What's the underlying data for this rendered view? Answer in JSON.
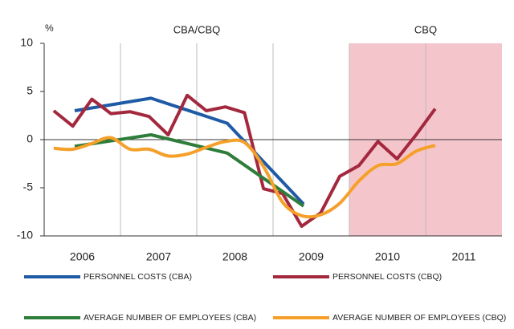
{
  "chart_data": {
    "type": "line",
    "y_unit": "%",
    "periods": [
      {
        "label": "CBA/CBQ",
        "start": 2006,
        "end": 2010,
        "shaded": false
      },
      {
        "label": "CBQ",
        "start": 2010,
        "end": 2012,
        "shaded": true
      }
    ],
    "xlim": [
      2006,
      2012
    ],
    "xticks": [
      {
        "value": 2006.5,
        "label": "2006"
      },
      {
        "value": 2007.5,
        "label": "2007"
      },
      {
        "value": 2008.5,
        "label": "2008"
      },
      {
        "value": 2009.5,
        "label": "2009"
      },
      {
        "value": 2010.5,
        "label": "2010"
      },
      {
        "value": 2011.5,
        "label": "2011"
      }
    ],
    "ylim": [
      -10,
      10
    ],
    "yticks": [
      10,
      5,
      0,
      -5,
      -10
    ],
    "series": [
      {
        "name": "PERSONNEL COSTS (CBA)",
        "color": "#1f5aa6",
        "smooth": false,
        "x": [
          2006.4,
          2007.4,
          2008.4,
          2009.4
        ],
        "values": [
          3.0,
          4.3,
          1.7,
          -6.7
        ]
      },
      {
        "name": "PERSONNEL COSTS (CBQ)",
        "color": "#a3283e",
        "smooth": false,
        "x": [
          2006.125,
          2006.375,
          2006.625,
          2006.875,
          2007.125,
          2007.375,
          2007.625,
          2007.875,
          2008.125,
          2008.375,
          2008.625,
          2008.875,
          2009.125,
          2009.375,
          2009.625,
          2009.875,
          2010.125,
          2010.375,
          2010.625,
          2010.875,
          2011.125
        ],
        "values": [
          3.0,
          1.4,
          4.2,
          2.7,
          2.9,
          2.4,
          0.5,
          4.6,
          3.0,
          3.4,
          2.8,
          -5.1,
          -5.6,
          -9.0,
          -7.6,
          -3.8,
          -2.7,
          -0.2,
          -2.0,
          0.5,
          3.2
        ]
      },
      {
        "name": "AVERAGE NUMBER OF EMPLOYEES (CBA)",
        "color": "#2e7d3a",
        "smooth": false,
        "x": [
          2006.4,
          2007.4,
          2008.4,
          2009.4
        ],
        "values": [
          -0.7,
          0.5,
          -1.4,
          -6.9
        ]
      },
      {
        "name": "AVERAGE NUMBER OF EMPLOYEES (CBQ)",
        "color": "#f5a02a",
        "smooth": true,
        "x": [
          2006.125,
          2006.375,
          2006.625,
          2006.875,
          2007.125,
          2007.375,
          2007.625,
          2007.875,
          2008.125,
          2008.375,
          2008.625,
          2008.875,
          2009.125,
          2009.375,
          2009.625,
          2009.875,
          2010.125,
          2010.375,
          2010.625,
          2010.875,
          2011.125
        ],
        "values": [
          -0.9,
          -1.0,
          -0.4,
          0.2,
          -1.0,
          -1.0,
          -1.7,
          -1.5,
          -0.8,
          -0.2,
          -0.3,
          -2.8,
          -6.5,
          -7.9,
          -7.8,
          -6.6,
          -4.3,
          -2.7,
          -2.5,
          -1.2,
          -0.6
        ]
      }
    ]
  }
}
